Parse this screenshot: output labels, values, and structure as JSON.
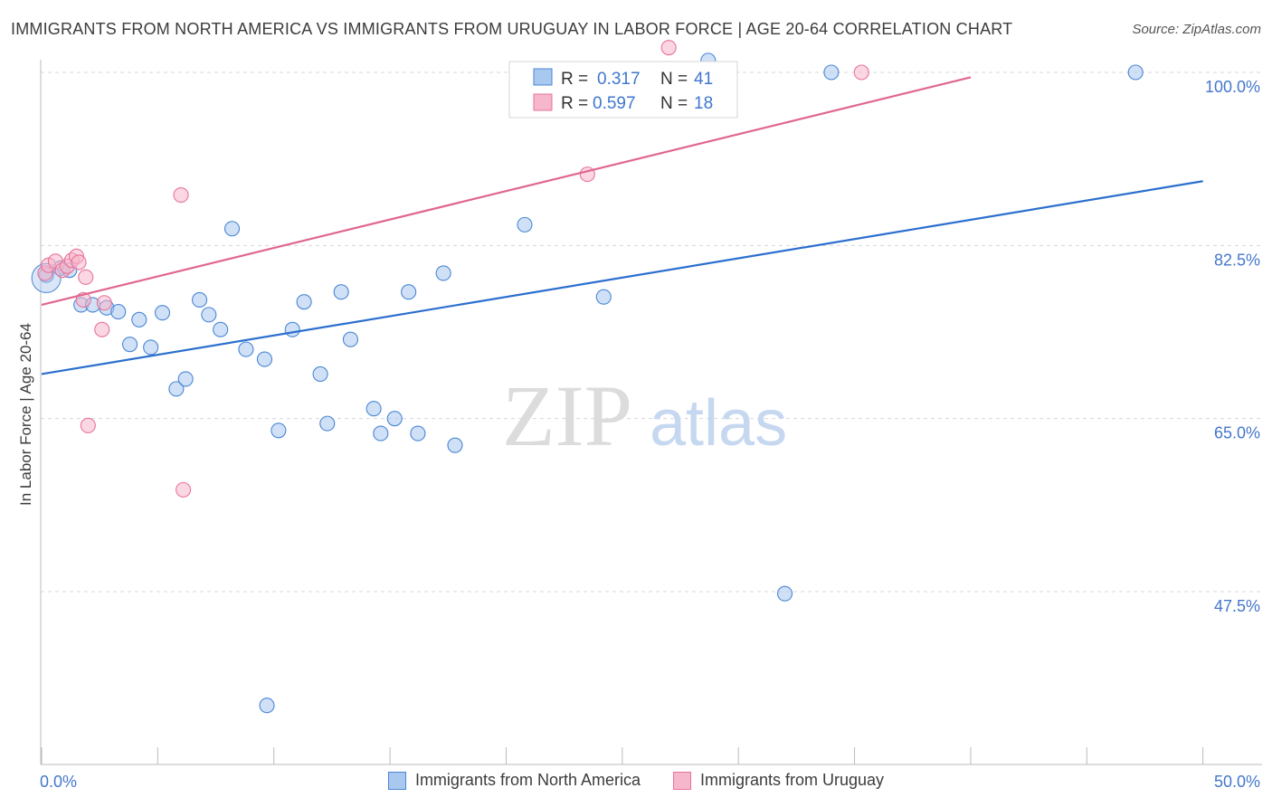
{
  "header": {
    "title": "IMMIGRANTS FROM NORTH AMERICA VS IMMIGRANTS FROM URUGUAY IN LABOR FORCE | AGE 20-64 CORRELATION CHART",
    "source": "Source: ZipAtlas.com"
  },
  "watermark": {
    "zip": "ZIP",
    "atlas": "atlas"
  },
  "colors": {
    "blue": "#4a86d4",
    "blue_fill": "#a9c8f0",
    "pink": "#e8739a",
    "pink_fill": "#f6b6cb",
    "blue_line": "#2b6fce",
    "pink_line": "#e06690",
    "tick_label": "#4477cc",
    "grid": "#d8d8d8"
  },
  "legend_top": [
    {
      "r_label": "R =",
      "r_value": "0.317",
      "n_label": "N =",
      "n_value": "41"
    },
    {
      "r_label": "R =",
      "r_value": "0.597",
      "n_label": "N =",
      "n_value": "18"
    }
  ],
  "chart_data": {
    "type": "scatter",
    "title": "IMMIGRANTS FROM NORTH AMERICA VS IMMIGRANTS FROM URUGUAY IN LABOR FORCE | AGE 20-64 CORRELATION CHART",
    "xlabel": "",
    "ylabel": "In Labor Force | Age 20-64",
    "xlim": [
      0,
      50
    ],
    "ylim": [
      32,
      102
    ],
    "x_tick_labels": [
      "0.0%",
      "50.0%"
    ],
    "y_ticks": [
      47.5,
      65.0,
      82.5,
      100.0
    ],
    "y_tick_labels": [
      "47.5%",
      "65.0%",
      "82.5%",
      "100.0%"
    ],
    "grid": true,
    "legend_position": "top-center",
    "series": [
      {
        "name": "Immigrants from North America",
        "color": "#4a86d4",
        "trend": {
          "x": [
            0,
            50
          ],
          "y": [
            69.5,
            89.0
          ]
        },
        "points": [
          {
            "x": 0.2,
            "y": 79.5
          },
          {
            "x": 0.8,
            "y": 80.2
          },
          {
            "x": 1.2,
            "y": 80.0
          },
          {
            "x": 1.7,
            "y": 76.5
          },
          {
            "x": 2.2,
            "y": 76.5
          },
          {
            "x": 2.8,
            "y": 76.2
          },
          {
            "x": 3.3,
            "y": 75.8
          },
          {
            "x": 3.8,
            "y": 72.5
          },
          {
            "x": 4.2,
            "y": 75.0
          },
          {
            "x": 4.7,
            "y": 72.2
          },
          {
            "x": 5.2,
            "y": 75.7
          },
          {
            "x": 5.8,
            "y": 68.0
          },
          {
            "x": 6.2,
            "y": 69.0
          },
          {
            "x": 6.8,
            "y": 77.0
          },
          {
            "x": 7.2,
            "y": 75.5
          },
          {
            "x": 7.7,
            "y": 74.0
          },
          {
            "x": 8.2,
            "y": 84.2
          },
          {
            "x": 8.8,
            "y": 72.0
          },
          {
            "x": 9.6,
            "y": 71.0
          },
          {
            "x": 9.7,
            "y": 36.0
          },
          {
            "x": 10.2,
            "y": 63.8
          },
          {
            "x": 10.8,
            "y": 74.0
          },
          {
            "x": 11.3,
            "y": 76.8
          },
          {
            "x": 12.0,
            "y": 69.5
          },
          {
            "x": 12.3,
            "y": 64.5
          },
          {
            "x": 12.9,
            "y": 77.8
          },
          {
            "x": 13.3,
            "y": 73.0
          },
          {
            "x": 14.3,
            "y": 66.0
          },
          {
            "x": 14.6,
            "y": 63.5
          },
          {
            "x": 15.2,
            "y": 65.0
          },
          {
            "x": 15.8,
            "y": 77.8
          },
          {
            "x": 16.2,
            "y": 63.5
          },
          {
            "x": 17.3,
            "y": 79.7
          },
          {
            "x": 17.8,
            "y": 62.3
          },
          {
            "x": 20.8,
            "y": 84.6
          },
          {
            "x": 24.2,
            "y": 77.3
          },
          {
            "x": 26.0,
            "y": 100.0
          },
          {
            "x": 28.7,
            "y": 101.2
          },
          {
            "x": 32.0,
            "y": 47.3
          },
          {
            "x": 34.0,
            "y": 100.0
          },
          {
            "x": 47.1,
            "y": 100.0
          }
        ]
      },
      {
        "name": "Immigrants from Uruguay",
        "color": "#e8739a",
        "trend": {
          "x": [
            0,
            40
          ],
          "y": [
            76.5,
            99.5
          ]
        },
        "points": [
          {
            "x": 0.15,
            "y": 79.7
          },
          {
            "x": 0.3,
            "y": 80.5
          },
          {
            "x": 0.6,
            "y": 80.9
          },
          {
            "x": 0.9,
            "y": 80.0
          },
          {
            "x": 1.1,
            "y": 80.4
          },
          {
            "x": 1.3,
            "y": 81.0
          },
          {
            "x": 1.5,
            "y": 81.4
          },
          {
            "x": 1.6,
            "y": 80.8
          },
          {
            "x": 1.8,
            "y": 77.0
          },
          {
            "x": 1.9,
            "y": 79.3
          },
          {
            "x": 2.6,
            "y": 74.0
          },
          {
            "x": 2.7,
            "y": 76.7
          },
          {
            "x": 2.0,
            "y": 64.3
          },
          {
            "x": 6.0,
            "y": 87.6
          },
          {
            "x": 6.1,
            "y": 57.8
          },
          {
            "x": 23.5,
            "y": 89.7
          },
          {
            "x": 35.3,
            "y": 100.0
          },
          {
            "x": 27.0,
            "y": 102.5
          }
        ]
      }
    ]
  }
}
